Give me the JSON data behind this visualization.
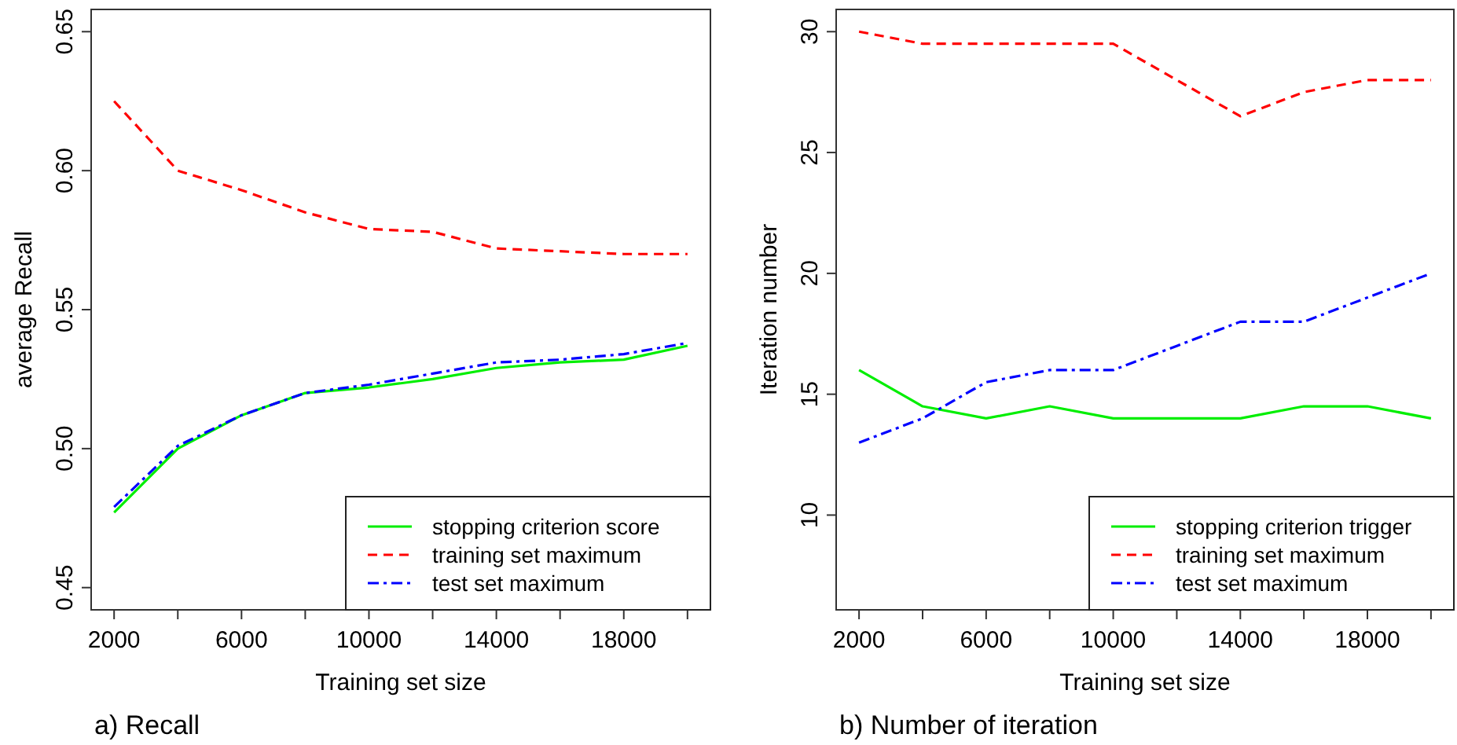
{
  "chart_data": [
    {
      "type": "line",
      "title": "a) Recall",
      "xlabel": "Training set size",
      "ylabel": "average Recall",
      "x": [
        2000,
        4000,
        6000,
        8000,
        10000,
        12000,
        14000,
        16000,
        18000,
        20000
      ],
      "xlim": [
        1280,
        20720
      ],
      "xticks": [
        2000,
        {
          "value": 4000,
          "label": null
        },
        6000,
        {
          "value": 8000,
          "label": null
        },
        10000,
        {
          "value": 12000,
          "label": null
        },
        14000,
        {
          "value": 16000,
          "label": null
        },
        18000,
        {
          "value": 20000,
          "label": null
        }
      ],
      "ylim": [
        0.442,
        0.658
      ],
      "yticks": [
        {
          "value": 0.45,
          "label": "0.45"
        },
        {
          "value": 0.5,
          "label": "0.50"
        },
        {
          "value": 0.55,
          "label": "0.55"
        },
        {
          "value": 0.6,
          "label": "0.60"
        },
        {
          "value": 0.65,
          "label": "0.65"
        }
      ],
      "legend": "bottom right",
      "grid": false,
      "series": [
        {
          "name": "stopping criterion score",
          "color": "#00ee00",
          "line_style": "solid",
          "values": [
            0.477,
            0.5,
            0.512,
            0.52,
            0.522,
            0.525,
            0.529,
            0.531,
            0.532,
            0.537
          ]
        },
        {
          "name": "training set maximum",
          "color": "#ff0000",
          "line_style": "dashed",
          "values": [
            0.625,
            0.6,
            0.593,
            0.585,
            0.579,
            0.578,
            0.572,
            0.571,
            0.57,
            0.57
          ]
        },
        {
          "name": "test set maximum",
          "color": "#0000ff",
          "line_style": "dashdot",
          "values": [
            0.479,
            0.501,
            0.512,
            0.52,
            0.523,
            0.527,
            0.531,
            0.532,
            0.534,
            0.538
          ]
        }
      ]
    },
    {
      "type": "line",
      "title": "b) Number of iteration",
      "xlabel": "Training set size",
      "ylabel": "Iteration number",
      "x": [
        2000,
        4000,
        6000,
        8000,
        10000,
        12000,
        14000,
        16000,
        18000,
        20000
      ],
      "xlim": [
        1280,
        20720
      ],
      "xticks": [
        2000,
        {
          "value": 4000,
          "label": null
        },
        6000,
        {
          "value": 8000,
          "label": null
        },
        10000,
        {
          "value": 12000,
          "label": null
        },
        14000,
        {
          "value": 16000,
          "label": null
        },
        18000,
        {
          "value": 20000,
          "label": null
        }
      ],
      "ylim": [
        6.08,
        30.92
      ],
      "yticks": [
        10,
        15,
        20,
        25,
        30
      ],
      "legend": "bottom right",
      "grid": false,
      "series": [
        {
          "name": "stopping criterion trigger",
          "color": "#00ee00",
          "line_style": "solid",
          "values": [
            16,
            14.5,
            14,
            14.5,
            14,
            14,
            14,
            14.5,
            14.5,
            14
          ]
        },
        {
          "name": "training set maximum",
          "color": "#ff0000",
          "line_style": "dashed",
          "values": [
            30,
            29.5,
            29.5,
            29.5,
            29.5,
            28,
            26.5,
            27.5,
            28,
            28
          ]
        },
        {
          "name": "test set maximum",
          "color": "#0000ff",
          "line_style": "dashdot",
          "values": [
            13,
            14,
            15.5,
            16,
            16,
            17,
            18,
            18,
            19,
            20
          ]
        }
      ]
    }
  ]
}
